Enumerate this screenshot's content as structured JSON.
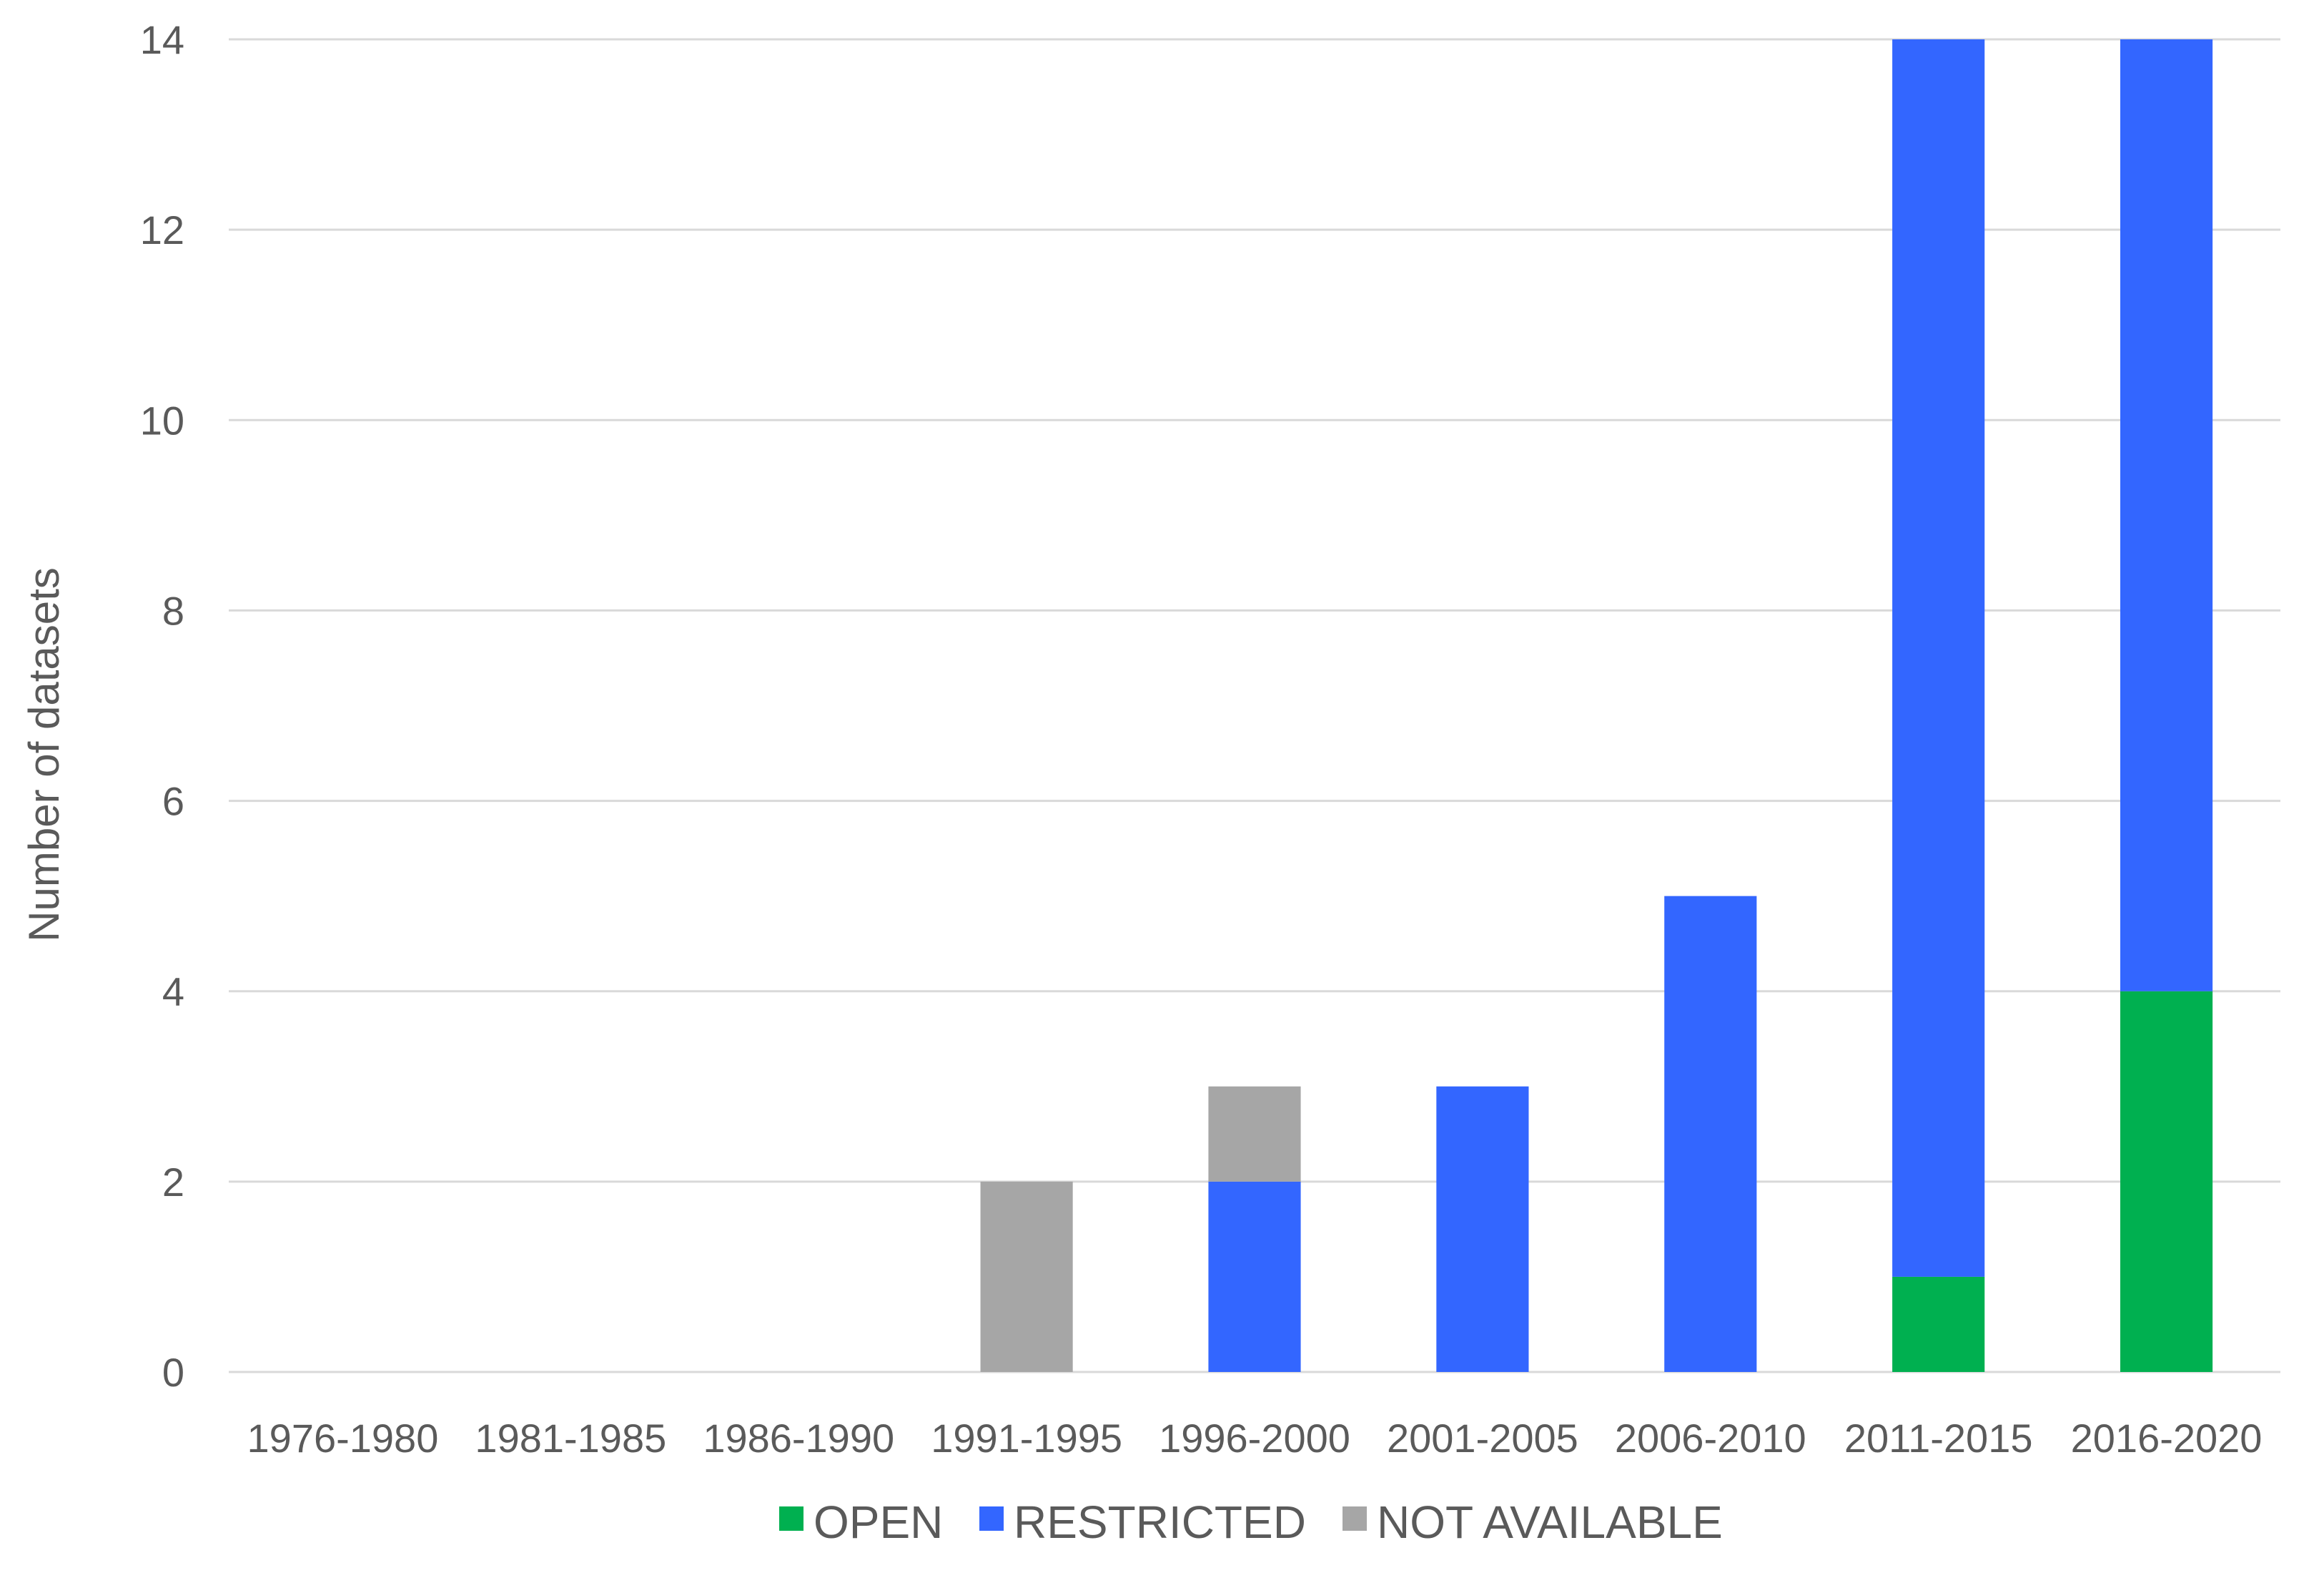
{
  "chart_data": {
    "type": "bar",
    "stacked": true,
    "title": "",
    "xlabel": "",
    "ylabel": "Number of datasets",
    "ylim": [
      0,
      14
    ],
    "yticks": [
      0,
      2,
      4,
      6,
      8,
      10,
      12,
      14
    ],
    "grid": true,
    "legend_position": "bottom",
    "categories": [
      "1976-1980",
      "1981-1985",
      "1986-1990",
      "1991-1995",
      "1996-2000",
      "2001-2005",
      "2006-2010",
      "2011-2015",
      "2016-2020"
    ],
    "series": [
      {
        "name": "OPEN",
        "color": "#00b050",
        "values": [
          0,
          0,
          0,
          0,
          0,
          0,
          0,
          1,
          4
        ]
      },
      {
        "name": "RESTRICTED",
        "color": "#3366ff",
        "values": [
          0,
          0,
          0,
          0,
          2,
          3,
          5,
          13,
          10
        ]
      },
      {
        "name": "NOT AVAILABLE",
        "color": "#a6a6a6",
        "values": [
          0,
          0,
          0,
          2,
          1,
          0,
          0,
          0,
          0
        ]
      }
    ]
  }
}
